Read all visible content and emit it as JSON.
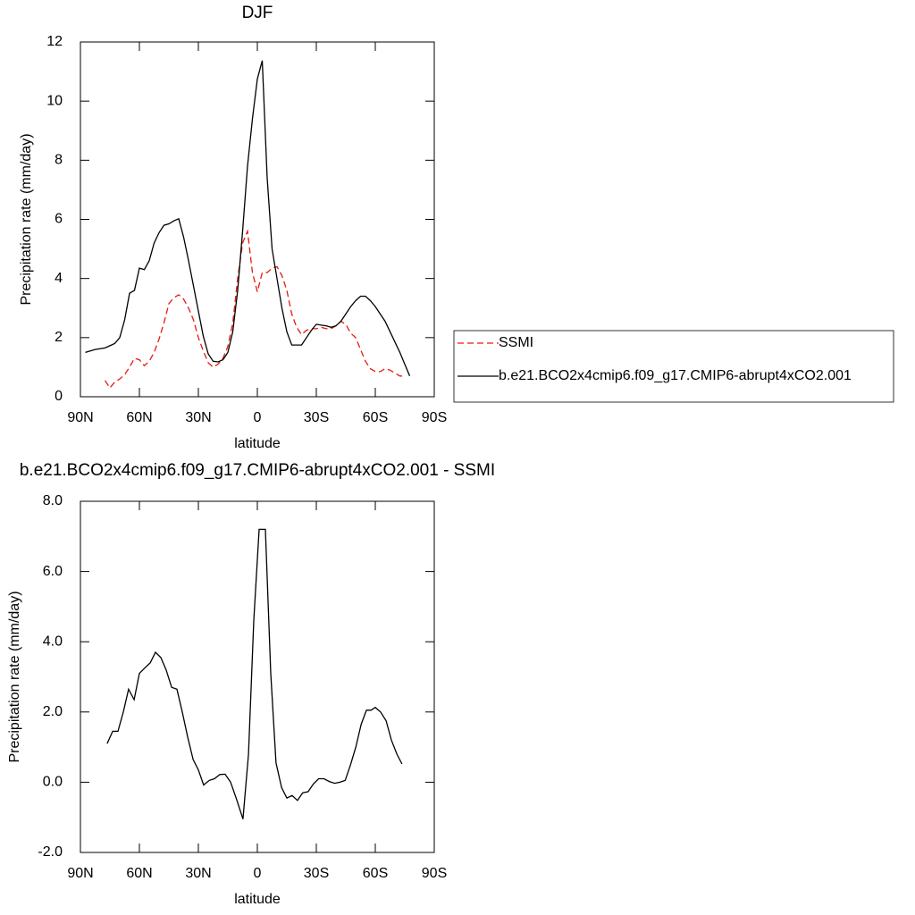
{
  "chart_data": [
    {
      "type": "line",
      "title": "DJF",
      "x_label": "latitude",
      "y_label": "Precipitation rate (mm/day)",
      "xlim": [
        90,
        -90
      ],
      "xticks": [
        {
          "value": 90,
          "label": "90N"
        },
        {
          "value": 60,
          "label": "60N"
        },
        {
          "value": 30,
          "label": "30N"
        },
        0,
        {
          "value": -30,
          "label": "30S"
        },
        {
          "value": -60,
          "label": "60S"
        },
        {
          "value": -90,
          "label": "90S"
        }
      ],
      "ylim": [
        0,
        12
      ],
      "yticks": [
        0,
        2,
        4,
        6,
        8,
        10,
        12
      ],
      "legend": "right",
      "series": [
        {
          "name": "SSMI",
          "color": "#e8190f",
          "line_style": "dashed",
          "x": [
            77.5,
            75,
            72.5,
            70,
            67.5,
            65,
            62.5,
            60,
            57.5,
            55,
            52.5,
            50,
            47.5,
            45,
            42.5,
            40,
            37.5,
            35,
            32.5,
            30,
            27.5,
            25,
            22.5,
            20,
            17.5,
            15,
            12.5,
            10,
            7.5,
            5,
            2.5,
            0,
            -2.5,
            -5,
            -7.5,
            -10,
            -12.5,
            -15,
            -17.5,
            -20,
            -22.5,
            -25,
            -27.5,
            -30,
            -32.5,
            -35,
            -37.5,
            -40,
            -42.5,
            -45,
            -47.5,
            -50,
            -52.5,
            -55,
            -57.5,
            -60,
            -62.5,
            -65,
            -67.5,
            -70,
            -72.5,
            -75
          ],
          "values": [
            0.55,
            0.3,
            0.5,
            0.6,
            0.75,
            1.0,
            1.3,
            1.25,
            1.05,
            1.2,
            1.5,
            1.95,
            2.5,
            3.15,
            3.35,
            3.45,
            3.3,
            3.0,
            2.6,
            2.0,
            1.55,
            1.15,
            1.0,
            1.1,
            1.3,
            1.7,
            2.5,
            4.0,
            5.2,
            5.6,
            4.2,
            3.55,
            4.2,
            4.2,
            4.35,
            4.4,
            4.1,
            3.6,
            2.8,
            2.35,
            2.1,
            2.25,
            2.3,
            2.3,
            2.35,
            2.3,
            2.3,
            2.4,
            2.55,
            2.45,
            2.15,
            2.0,
            1.6,
            1.2,
            0.95,
            0.85,
            0.85,
            0.95,
            0.9,
            0.8,
            0.7,
            0.7
          ]
        },
        {
          "name": "b.e21.BCO2x4cmip6.f09_g17.CMIP6-abrupt4xCO2.001",
          "color": "#000000",
          "line_style": "solid",
          "x": [
            87.5,
            82.5,
            77.5,
            72.5,
            70,
            67.5,
            65,
            62.5,
            60,
            57.5,
            55,
            52.5,
            50,
            47.5,
            45,
            42.5,
            40,
            37.5,
            35,
            32.5,
            30,
            27.5,
            25,
            22.5,
            20,
            17.5,
            15,
            12.5,
            10,
            7.5,
            5,
            2.5,
            0,
            -2.5,
            -5,
            -7.5,
            -10,
            -12.5,
            -15,
            -17.5,
            -20,
            -22.5,
            -25,
            -27.5,
            -30,
            -32.5,
            -35,
            -37.5,
            -40,
            -42.5,
            -45,
            -47.5,
            -50,
            -52.5,
            -55,
            -57.5,
            -60,
            -62.5,
            -65,
            -67.5,
            -70,
            -72.5,
            -75,
            -77.5
          ],
          "values": [
            1.5,
            1.6,
            1.65,
            1.8,
            2.0,
            2.6,
            3.5,
            3.6,
            4.35,
            4.3,
            4.6,
            5.2,
            5.55,
            5.8,
            5.85,
            5.95,
            6.02,
            5.4,
            4.6,
            3.75,
            2.9,
            2.05,
            1.45,
            1.2,
            1.18,
            1.25,
            1.5,
            2.2,
            3.6,
            5.6,
            7.8,
            9.4,
            10.75,
            11.37,
            7.4,
            5.0,
            4.0,
            3.0,
            2.2,
            1.75,
            1.75,
            1.75,
            2.0,
            2.25,
            2.45,
            2.42,
            2.4,
            2.35,
            2.4,
            2.55,
            2.8,
            3.05,
            3.25,
            3.4,
            3.4,
            3.25,
            3.05,
            2.8,
            2.55,
            2.2,
            1.85,
            1.5,
            1.1,
            0.7
          ]
        }
      ]
    },
    {
      "type": "line",
      "title": "b.e21.BCO2x4cmip6.f09_g17.CMIP6-abrupt4xCO2.001 - SSMI",
      "x_label": "latitude",
      "y_label": "Precipitation rate (mm/day)",
      "xlim": [
        90,
        -90
      ],
      "xticks": [
        {
          "value": 90,
          "label": "90N"
        },
        {
          "value": 60,
          "label": "60N"
        },
        {
          "value": 30,
          "label": "30N"
        },
        0,
        {
          "value": -30,
          "label": "30S"
        },
        {
          "value": -60,
          "label": "60S"
        },
        {
          "value": -90,
          "label": "90S"
        }
      ],
      "ylim": [
        -2,
        8
      ],
      "yticks": [
        {
          "value": -2,
          "label": "-2.0"
        },
        {
          "value": 0,
          "label": "0.0"
        },
        {
          "value": 2,
          "label": "2.0"
        },
        {
          "value": 4,
          "label": "4.0"
        },
        {
          "value": 6,
          "label": "6.0"
        },
        {
          "value": 8,
          "label": "8.0"
        }
      ],
      "series": [
        {
          "color": "#000000",
          "line_style": "solid",
          "x": [
            76.4,
            73.6,
            70.9,
            68.2,
            65.5,
            62.7,
            60,
            57.3,
            54.5,
            51.8,
            49.1,
            46.4,
            43.6,
            40.9,
            38.2,
            35.5,
            32.7,
            30,
            27.3,
            24.5,
            21.8,
            19.1,
            16.4,
            13.6,
            10.5,
            7.3,
            4.5,
            1.8,
            -0.9,
            -4.1,
            -6.8,
            -9.5,
            -12.3,
            -15,
            -17.7,
            -20.4,
            -23.1,
            -25.8,
            -28.5,
            -31.2,
            -33.9,
            -36.6,
            -39.3,
            -42,
            -44.7,
            -47.4,
            -50.1,
            -52.8,
            -55.5,
            -57.8,
            -60,
            -62.7,
            -65.5,
            -68.2,
            -71,
            -73.6
          ],
          "values": [
            1.1,
            1.45,
            1.45,
            2.0,
            2.65,
            2.35,
            3.1,
            3.25,
            3.4,
            3.7,
            3.55,
            3.2,
            2.7,
            2.65,
            2.0,
            1.3,
            0.65,
            0.35,
            -0.08,
            0.05,
            0.1,
            0.22,
            0.23,
            0.0,
            -0.5,
            -1.05,
            0.8,
            4.6,
            7.2,
            7.2,
            3.1,
            0.55,
            -0.15,
            -0.45,
            -0.38,
            -0.52,
            -0.3,
            -0.27,
            -0.05,
            0.1,
            0.1,
            0.02,
            -0.03,
            0.0,
            0.05,
            0.5,
            1.0,
            1.65,
            2.05,
            2.05,
            2.13,
            2.0,
            1.75,
            1.2,
            0.8,
            0.52
          ]
        }
      ]
    }
  ]
}
